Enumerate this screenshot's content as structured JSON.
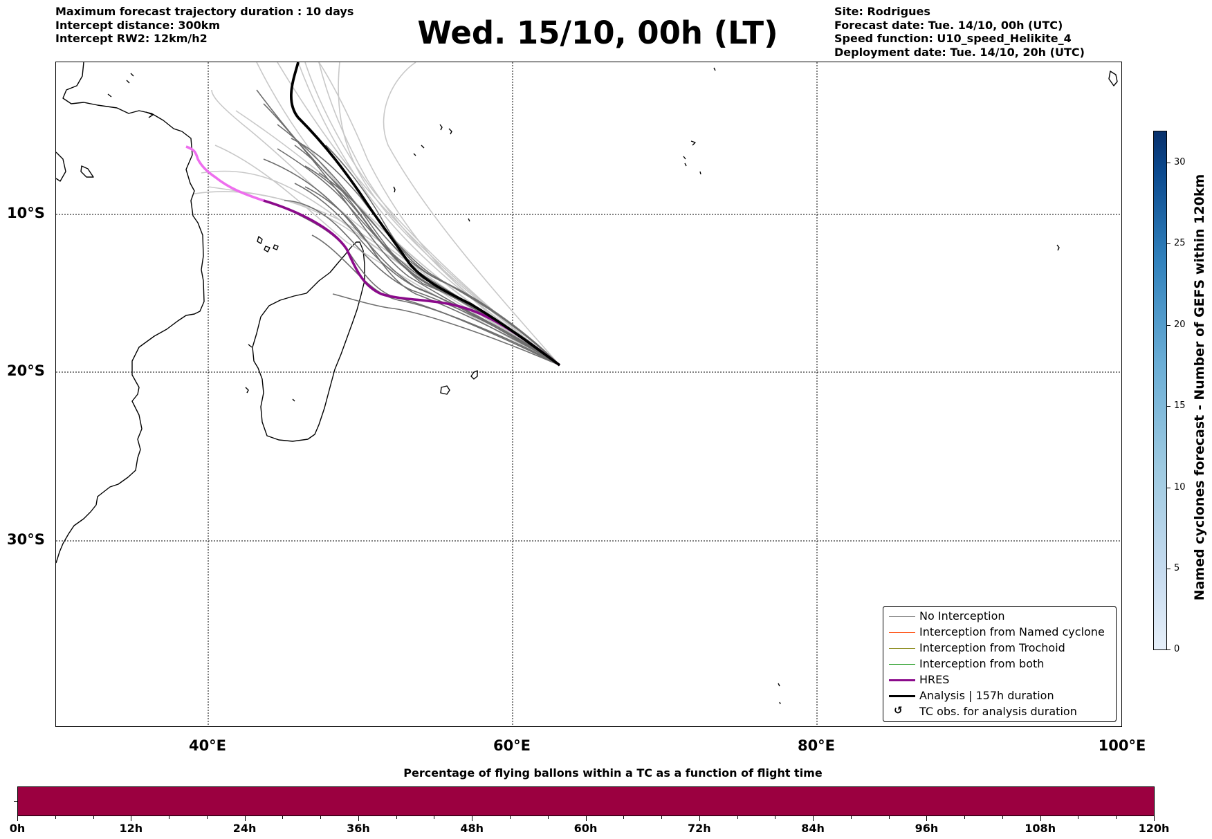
{
  "header": {
    "left_lines": [
      "Maximum forecast trajectory duration : 10 days",
      "Intercept distance: 300km",
      "Intercept RW2: 12km/h2"
    ],
    "title": "Wed. 15/10, 00h (LT)",
    "right_lines": [
      "Site: Rodrigues",
      "Forecast date: Tue. 14/10, 00h (UTC)",
      "Speed function: U10_speed_Helikite_4",
      "Deployment date: Tue. 14/10, 20h (UTC)"
    ]
  },
  "map": {
    "lat_labels": [
      "10°S",
      "20°S",
      "30°S"
    ],
    "lon_labels": [
      "40°E",
      "60°E",
      "80°E",
      "100°E"
    ],
    "launch_site": "Rodrigues"
  },
  "legend": {
    "items": [
      {
        "label": "No Interception",
        "color": "#808080",
        "style": "thin"
      },
      {
        "label": "Interception from Named cyclone",
        "color": "#ff5a1f",
        "style": "thin"
      },
      {
        "label": "Interception from Trochoid",
        "color": "#8b8b1a",
        "style": "thin"
      },
      {
        "label": "Interception from both",
        "color": "#2ca02c",
        "style": "thin"
      },
      {
        "label": "HRES",
        "color": "#8b0a8b",
        "style": "thick"
      },
      {
        "label": "Analysis | 157h duration",
        "color": "#000000",
        "style": "thick"
      },
      {
        "label": "TC obs. for analysis duration",
        "icon": "cyclone-symbol",
        "glyph": "↺"
      }
    ]
  },
  "colorbar": {
    "label": "Named cyclones forecast - Number of GEFS within 120km",
    "ticks": [
      "0",
      "5",
      "10",
      "15",
      "20",
      "25",
      "30"
    ],
    "min": 0,
    "max": 32
  },
  "time_bar": {
    "title": "Percentage of flying ballons within a TC as a function of flight time",
    "color": "#9b0040",
    "ticks": [
      "0h",
      "12h",
      "24h",
      "36h",
      "48h",
      "60h",
      "72h",
      "84h",
      "96h",
      "108h",
      "120h"
    ]
  }
}
